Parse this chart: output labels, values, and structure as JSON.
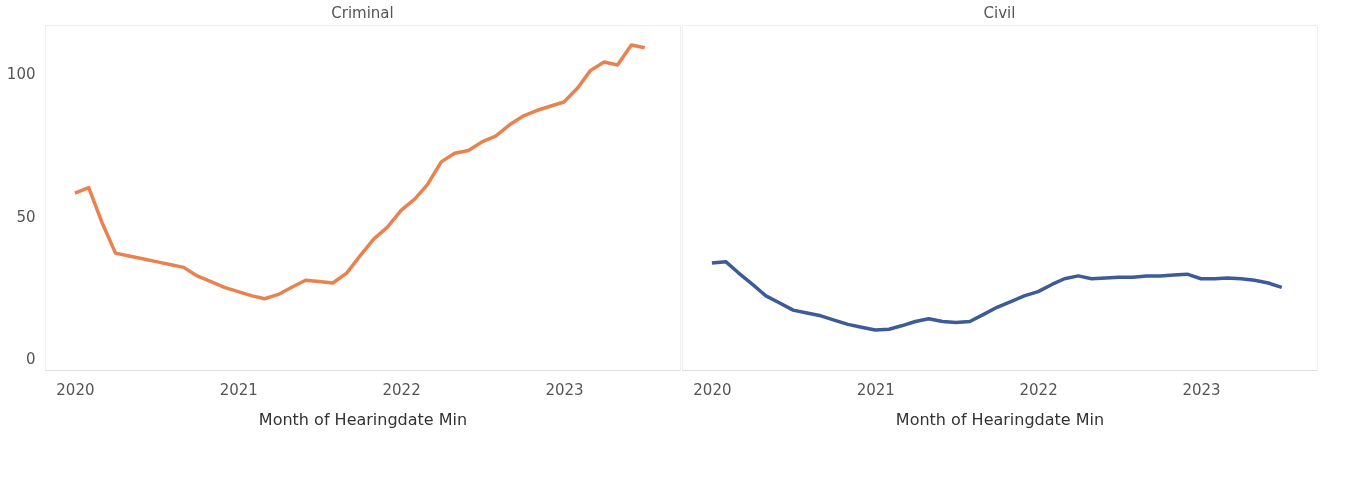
{
  "chart_data": [
    {
      "type": "line",
      "title": "Criminal",
      "xlabel": "Month of Hearingdate Min",
      "color": "#e8834f",
      "x": [
        "2020-01",
        "2020-02",
        "2020-03",
        "2020-04",
        "2020-05",
        "2020-06",
        "2020-07",
        "2020-08",
        "2020-09",
        "2020-10",
        "2020-11",
        "2020-12",
        "2021-01",
        "2021-02",
        "2021-03",
        "2021-04",
        "2021-05",
        "2021-06",
        "2021-07",
        "2021-08",
        "2021-09",
        "2021-10",
        "2021-11",
        "2021-12",
        "2022-01",
        "2022-02",
        "2022-03",
        "2022-04",
        "2022-05",
        "2022-06",
        "2022-07",
        "2022-08",
        "2022-09",
        "2022-10",
        "2022-11",
        "2022-12",
        "2023-01",
        "2023-02",
        "2023-03",
        "2023-04",
        "2023-05",
        "2023-06",
        "2023-07"
      ],
      "values": [
        58,
        60,
        48,
        37,
        36,
        35,
        34,
        33,
        32,
        29,
        27,
        25,
        23.5,
        22,
        21,
        22.5,
        25,
        27.5,
        27,
        26.5,
        30,
        36,
        42,
        46,
        52,
        56,
        61,
        69,
        72,
        73,
        76,
        78,
        82,
        85,
        87,
        88.5,
        90,
        95,
        101,
        104,
        103,
        110,
        109
      ],
      "xlim": [
        "2019-10-26",
        "2023-09-18"
      ],
      "xticks": [
        "2020",
        "2021",
        "2022",
        "2023"
      ],
      "ylim": [
        -4,
        117
      ],
      "yticks": [
        0,
        50,
        100
      ],
      "grid": false
    },
    {
      "type": "line",
      "title": "Civil",
      "xlabel": "Month of Hearingdate Min",
      "color": "#3d5a99",
      "x": [
        "2020-01",
        "2020-02",
        "2020-03",
        "2020-04",
        "2020-05",
        "2020-06",
        "2020-07",
        "2020-08",
        "2020-09",
        "2020-10",
        "2020-11",
        "2020-12",
        "2021-01",
        "2021-02",
        "2021-03",
        "2021-04",
        "2021-05",
        "2021-06",
        "2021-07",
        "2021-08",
        "2021-09",
        "2021-10",
        "2021-11",
        "2021-12",
        "2022-01",
        "2022-02",
        "2022-03",
        "2022-04",
        "2022-05",
        "2022-06",
        "2022-07",
        "2022-08",
        "2022-09",
        "2022-10",
        "2022-11",
        "2022-12",
        "2023-01",
        "2023-02",
        "2023-03",
        "2023-04",
        "2023-05",
        "2023-06",
        "2023-07"
      ],
      "values": [
        33.5,
        34,
        30,
        26,
        22,
        19.5,
        17,
        16,
        15,
        13.5,
        12,
        11,
        10,
        10.3,
        11.5,
        13,
        14,
        13,
        12.7,
        13,
        15.5,
        18,
        20,
        22,
        23.5,
        26,
        28,
        29,
        28,
        28.3,
        28.5,
        28.5,
        29,
        29,
        29.3,
        29.6,
        28,
        28,
        28.3,
        28,
        27.5,
        26.5,
        25
      ],
      "xlim": [
        "2019-10-26",
        "2023-09-18"
      ],
      "xticks": [
        "2020",
        "2021",
        "2022",
        "2023"
      ],
      "ylim": [
        -4,
        117
      ],
      "yticks": [
        0,
        50,
        100
      ],
      "grid": false,
      "tick_labels": "x"
    }
  ]
}
